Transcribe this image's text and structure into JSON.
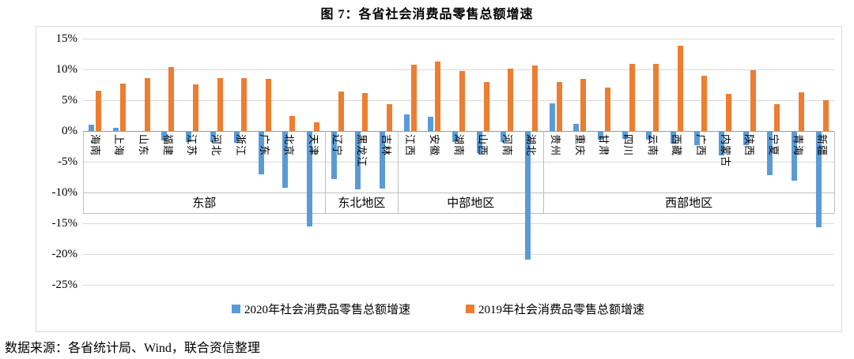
{
  "chart": {
    "title": "图 7：各省社会消费品零售总额增速",
    "source_note": "数据来源：各省统计局、Wind，联合资信整理"
  },
  "colors": {
    "series_2020": "#5B9BD5",
    "series_2019": "#ED7D31",
    "gridline": "#D9D9D9",
    "zero_axis": "#9A9A9A",
    "label_box_border": "#BFBFBF",
    "text": "#000000"
  },
  "chart_data": {
    "type": "bar",
    "title": "图 7：各省社会消费品零售总额增速",
    "categories": [
      "海南",
      "上海",
      "山东",
      "福建",
      "江苏",
      "河北",
      "浙江",
      "广东",
      "北京",
      "天津",
      "辽宁",
      "黑龙江",
      "吉林",
      "江西",
      "安徽",
      "湖南",
      "山西",
      "河南",
      "湖北",
      "贵州",
      "重庆",
      "甘肃",
      "四川",
      "云南",
      "西藏",
      "广西",
      "内蒙古",
      "陕西",
      "宁夏",
      "青海",
      "新疆"
    ],
    "region_groups": [
      {
        "label": "东部",
        "count": 10
      },
      {
        "label": "东北地区",
        "count": 3
      },
      {
        "label": "中部地区",
        "count": 6
      },
      {
        "label": "西部地区",
        "count": 12
      }
    ],
    "series": [
      {
        "name": "2020年社会消费品零售总额增速",
        "color": "#5B9BD5",
        "values": [
          1.0,
          0.5,
          0.0,
          -1.4,
          -1.7,
          -1.7,
          -1.8,
          -6.9,
          -9.1,
          -15.4,
          -7.7,
          -9.3,
          -9.2,
          2.7,
          2.3,
          -1.7,
          -3.5,
          -1.7,
          -20.8,
          4.5,
          1.1,
          -1.3,
          -1.2,
          -1.3,
          -1.9,
          -2.2,
          -3.8,
          -2.2,
          -7.1,
          -8.0,
          -15.5
        ]
      },
      {
        "name": "2019年社会消费品零售总额增速",
        "color": "#ED7D31",
        "values": [
          6.5,
          7.7,
          8.6,
          10.4,
          7.6,
          8.6,
          8.6,
          8.5,
          2.4,
          1.4,
          6.4,
          6.1,
          4.4,
          10.8,
          11.3,
          9.7,
          7.9,
          10.1,
          10.7,
          7.9,
          8.5,
          7.1,
          10.9,
          10.9,
          13.9,
          9.0,
          6.0,
          9.9,
          4.4,
          6.3,
          5.0
        ]
      }
    ],
    "y_axis": {
      "ticks": [
        {
          "label": "15%",
          "value": 15
        },
        {
          "label": "10%",
          "value": 10
        },
        {
          "label": "5%",
          "value": 5
        },
        {
          "label": "0%",
          "value": 0
        },
        {
          "label": "-5%",
          "value": -5
        },
        {
          "label": "-10%",
          "value": -10
        },
        {
          "label": "-15%",
          "value": -15
        },
        {
          "label": "-20%",
          "value": -20
        },
        {
          "label": "-25%",
          "value": -25
        }
      ]
    },
    "ylim": [
      -25,
      15
    ],
    "ytick_step": 5,
    "grid": true,
    "legend_position": "bottom"
  }
}
